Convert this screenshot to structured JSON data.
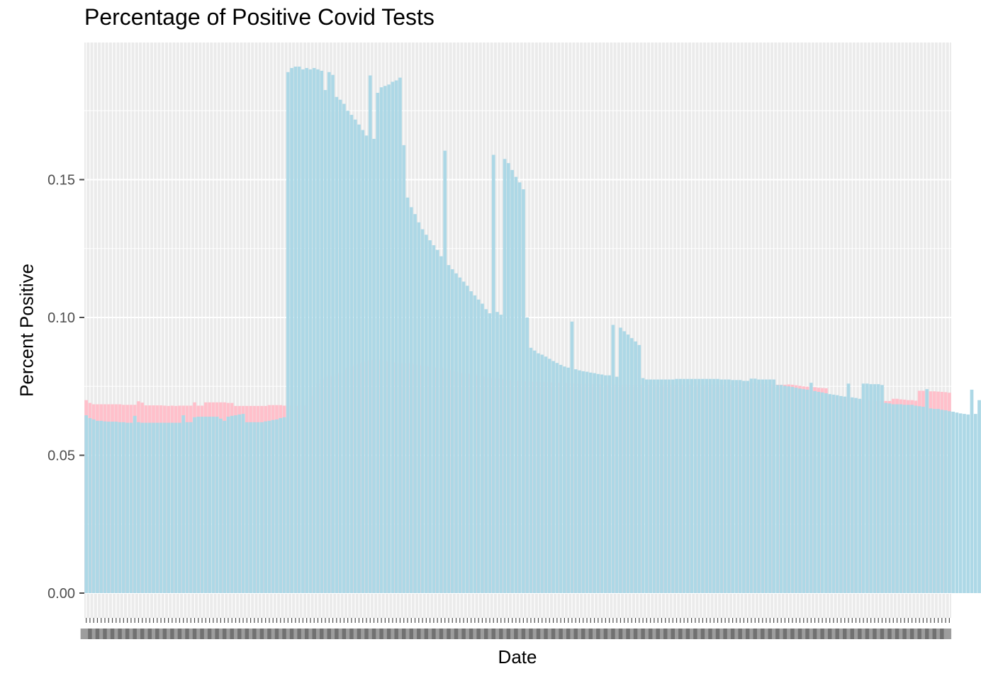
{
  "colors": {
    "panel": "#ebebeb",
    "grid": "#ffffff",
    "total": "#ffc0cb",
    "daily": "#add8e6",
    "tick": "#4d4d4d"
  },
  "chart_data": {
    "type": "bar",
    "title": "Percentage of Positive Covid Tests",
    "xlabel": "Date",
    "ylabel": "Percent Positive",
    "ylim": [
      0,
      0.2
    ],
    "yticks": [
      0.0,
      0.05,
      0.1,
      0.15
    ],
    "ytick_labels": [
      "0.00",
      "0.05",
      "0.10",
      "0.15"
    ],
    "x_tick_labels_illegible": true,
    "grid": true,
    "legend": "none",
    "series": [
      {
        "values": [
          0.07,
          0.069,
          0.0685,
          0.0685,
          0.0685,
          0.0685,
          0.0685,
          0.0685,
          0.0685,
          0.0685,
          0.0683,
          0.0683,
          0.0683,
          0.0683,
          0.0696,
          0.0691,
          0.0681,
          0.0681,
          0.0681,
          0.0681,
          0.0681,
          0.068,
          0.0679,
          0.068,
          0.0679,
          0.068,
          0.068,
          0.068,
          0.068,
          0.0692,
          0.068,
          0.068,
          0.0692,
          0.0692,
          0.0692,
          0.0692,
          0.0692,
          0.0692,
          0.069,
          0.069,
          0.0679,
          0.0679,
          0.0679,
          0.0679,
          0.0679,
          0.0679,
          0.0679,
          0.0679,
          0.0679,
          0.0682,
          0.0682,
          0.0682,
          0.0682,
          0.068,
          0.068,
          0.068,
          0.068,
          0.068,
          0.068,
          0.068,
          0.0715,
          0.0748,
          0.076,
          0.0775,
          0.0782,
          0.0788,
          0.0788,
          0.0795,
          0.08,
          0.081,
          0.0818,
          0.0822,
          0.0828,
          0.0833,
          0.0838,
          0.0843,
          0.0845,
          0.0846,
          0.0846,
          0.0845,
          0.0843,
          0.084,
          0.0838,
          0.0836,
          0.0835,
          0.0835,
          0.0835,
          0.0833,
          0.083,
          0.0828,
          0.0825,
          0.0823,
          0.0821,
          0.0819,
          0.0818,
          0.0816,
          0.0813,
          0.081,
          0.0807,
          0.0804,
          0.08,
          0.0797,
          0.0795,
          0.0795,
          0.0795,
          0.079,
          0.0787,
          0.0785,
          0.0782,
          0.078,
          0.0778,
          0.0777,
          0.0775,
          0.0773,
          0.0772,
          0.0771,
          0.077,
          0.0769,
          0.0768,
          0.0767,
          0.0767,
          0.0766,
          0.0765,
          0.0765,
          0.0764,
          0.0764,
          0.0763,
          0.0762,
          0.0762,
          0.0761,
          0.076,
          0.076,
          0.076,
          0.0759,
          0.0759,
          0.0758,
          0.0758,
          0.0757,
          0.0757,
          0.0757,
          0.0756,
          0.0756,
          0.0756,
          0.0755,
          0.0755,
          0.0755,
          0.0755,
          0.0755,
          0.0755,
          0.0755,
          0.0755,
          0.0755,
          0.0755,
          0.0755,
          0.0755,
          0.0755,
          0.0755,
          0.0755,
          0.0755,
          0.0755,
          0.0755,
          0.0755,
          0.0755,
          0.0755,
          0.0755,
          0.0755,
          0.0755,
          0.0755,
          0.0755,
          0.0755,
          0.0755,
          0.0755,
          0.0755,
          0.0755,
          0.0755,
          0.0768,
          0.0766,
          0.0764,
          0.0763,
          0.0761,
          0.076,
          0.0759,
          0.0758,
          0.0757,
          0.0756,
          0.0756,
          0.0756,
          0.0756,
          0.0757,
          0.0756,
          0.0754,
          0.0752,
          0.075,
          0.0749,
          0.0748,
          0.0747,
          0.0745,
          0.0744,
          0.0743,
          0.0718,
          0.0716,
          0.0714,
          0.0712,
          0.071,
          0.0709,
          0.0707,
          0.0706,
          0.0703,
          0.07,
          0.07,
          0.0698,
          0.0697,
          0.0697,
          0.0697,
          0.0697,
          0.0697,
          0.0705,
          0.0705,
          0.0703,
          0.0702,
          0.07,
          0.07,
          0.0698,
          0.0734,
          0.0734,
          0.0734,
          0.0732,
          0.0732,
          0.0731,
          0.073,
          0.0729,
          0.0727
        ]
      },
      {
        "values": [
          0.0645,
          0.0635,
          0.063,
          0.0625,
          0.0625,
          0.0623,
          0.0622,
          0.0622,
          0.0622,
          0.062,
          0.062,
          0.0618,
          0.0618,
          0.0643,
          0.062,
          0.0618,
          0.0618,
          0.0618,
          0.0618,
          0.0618,
          0.0618,
          0.0618,
          0.0618,
          0.0618,
          0.0618,
          0.0618,
          0.0645,
          0.062,
          0.062,
          0.0638,
          0.064,
          0.064,
          0.064,
          0.064,
          0.064,
          0.064,
          0.0633,
          0.0625,
          0.064,
          0.0643,
          0.0645,
          0.0648,
          0.065,
          0.062,
          0.062,
          0.062,
          0.062,
          0.062,
          0.0623,
          0.0625,
          0.0628,
          0.063,
          0.0635,
          0.0638,
          0.189,
          0.1905,
          0.191,
          0.191,
          0.19,
          0.1905,
          0.19,
          0.1905,
          0.19,
          0.1895,
          0.1825,
          0.189,
          0.188,
          0.18,
          0.179,
          0.1775,
          0.175,
          0.1735,
          0.1718,
          0.17,
          0.168,
          0.166,
          0.1878,
          0.1648,
          0.1815,
          0.1835,
          0.184,
          0.1845,
          0.1855,
          0.186,
          0.187,
          0.1625,
          0.1435,
          0.14,
          0.1375,
          0.1345,
          0.132,
          0.13,
          0.128,
          0.1262,
          0.1245,
          0.1222,
          0.1605,
          0.119,
          0.1175,
          0.116,
          0.1145,
          0.113,
          0.1115,
          0.1095,
          0.108,
          0.1065,
          0.105,
          0.103,
          0.1015,
          0.159,
          0.102,
          0.101,
          0.1575,
          0.156,
          0.1535,
          0.151,
          0.149,
          0.1465,
          0.1,
          0.089,
          0.088,
          0.087,
          0.0865,
          0.0858,
          0.085,
          0.0842,
          0.0835,
          0.0828,
          0.0822,
          0.0818,
          0.0985,
          0.0812,
          0.0808,
          0.0805,
          0.0803,
          0.08,
          0.0798,
          0.0795,
          0.0793,
          0.079,
          0.079,
          0.0973,
          0.0785,
          0.0963,
          0.095,
          0.0938,
          0.0925,
          0.0913,
          0.09,
          0.078,
          0.0775,
          0.0775,
          0.0775,
          0.0775,
          0.0775,
          0.0775,
          0.0775,
          0.0775,
          0.0777,
          0.0777,
          0.0777,
          0.0777,
          0.0777,
          0.0777,
          0.0777,
          0.0777,
          0.0777,
          0.0777,
          0.0777,
          0.0777,
          0.0775,
          0.0775,
          0.0775,
          0.0773,
          0.0773,
          0.0773,
          0.077,
          0.077,
          0.0778,
          0.0778,
          0.0775,
          0.0775,
          0.0775,
          0.0775,
          0.0775,
          0.0755,
          0.0755,
          0.0752,
          0.075,
          0.0748,
          0.0745,
          0.0742,
          0.074,
          0.0738,
          0.0763,
          0.0733,
          0.073,
          0.0728,
          0.0725,
          0.0722,
          0.072,
          0.0718,
          0.0715,
          0.0713,
          0.076,
          0.071,
          0.0708,
          0.0705,
          0.076,
          0.076,
          0.0758,
          0.0758,
          0.0758,
          0.0755,
          0.069,
          0.0688,
          0.0685,
          0.0685,
          0.0685,
          0.0683,
          0.0683,
          0.0683,
          0.068,
          0.0678,
          0.0676,
          0.074,
          0.067,
          0.0668,
          0.0668,
          0.0665,
          0.0663,
          0.066,
          0.0658,
          0.0655,
          0.0652,
          0.065,
          0.0648,
          0.0738,
          0.065,
          0.07,
          0.07,
          0.0698,
          0.0697,
          0.0695,
          0.0693,
          0.069
        ]
      }
    ]
  }
}
